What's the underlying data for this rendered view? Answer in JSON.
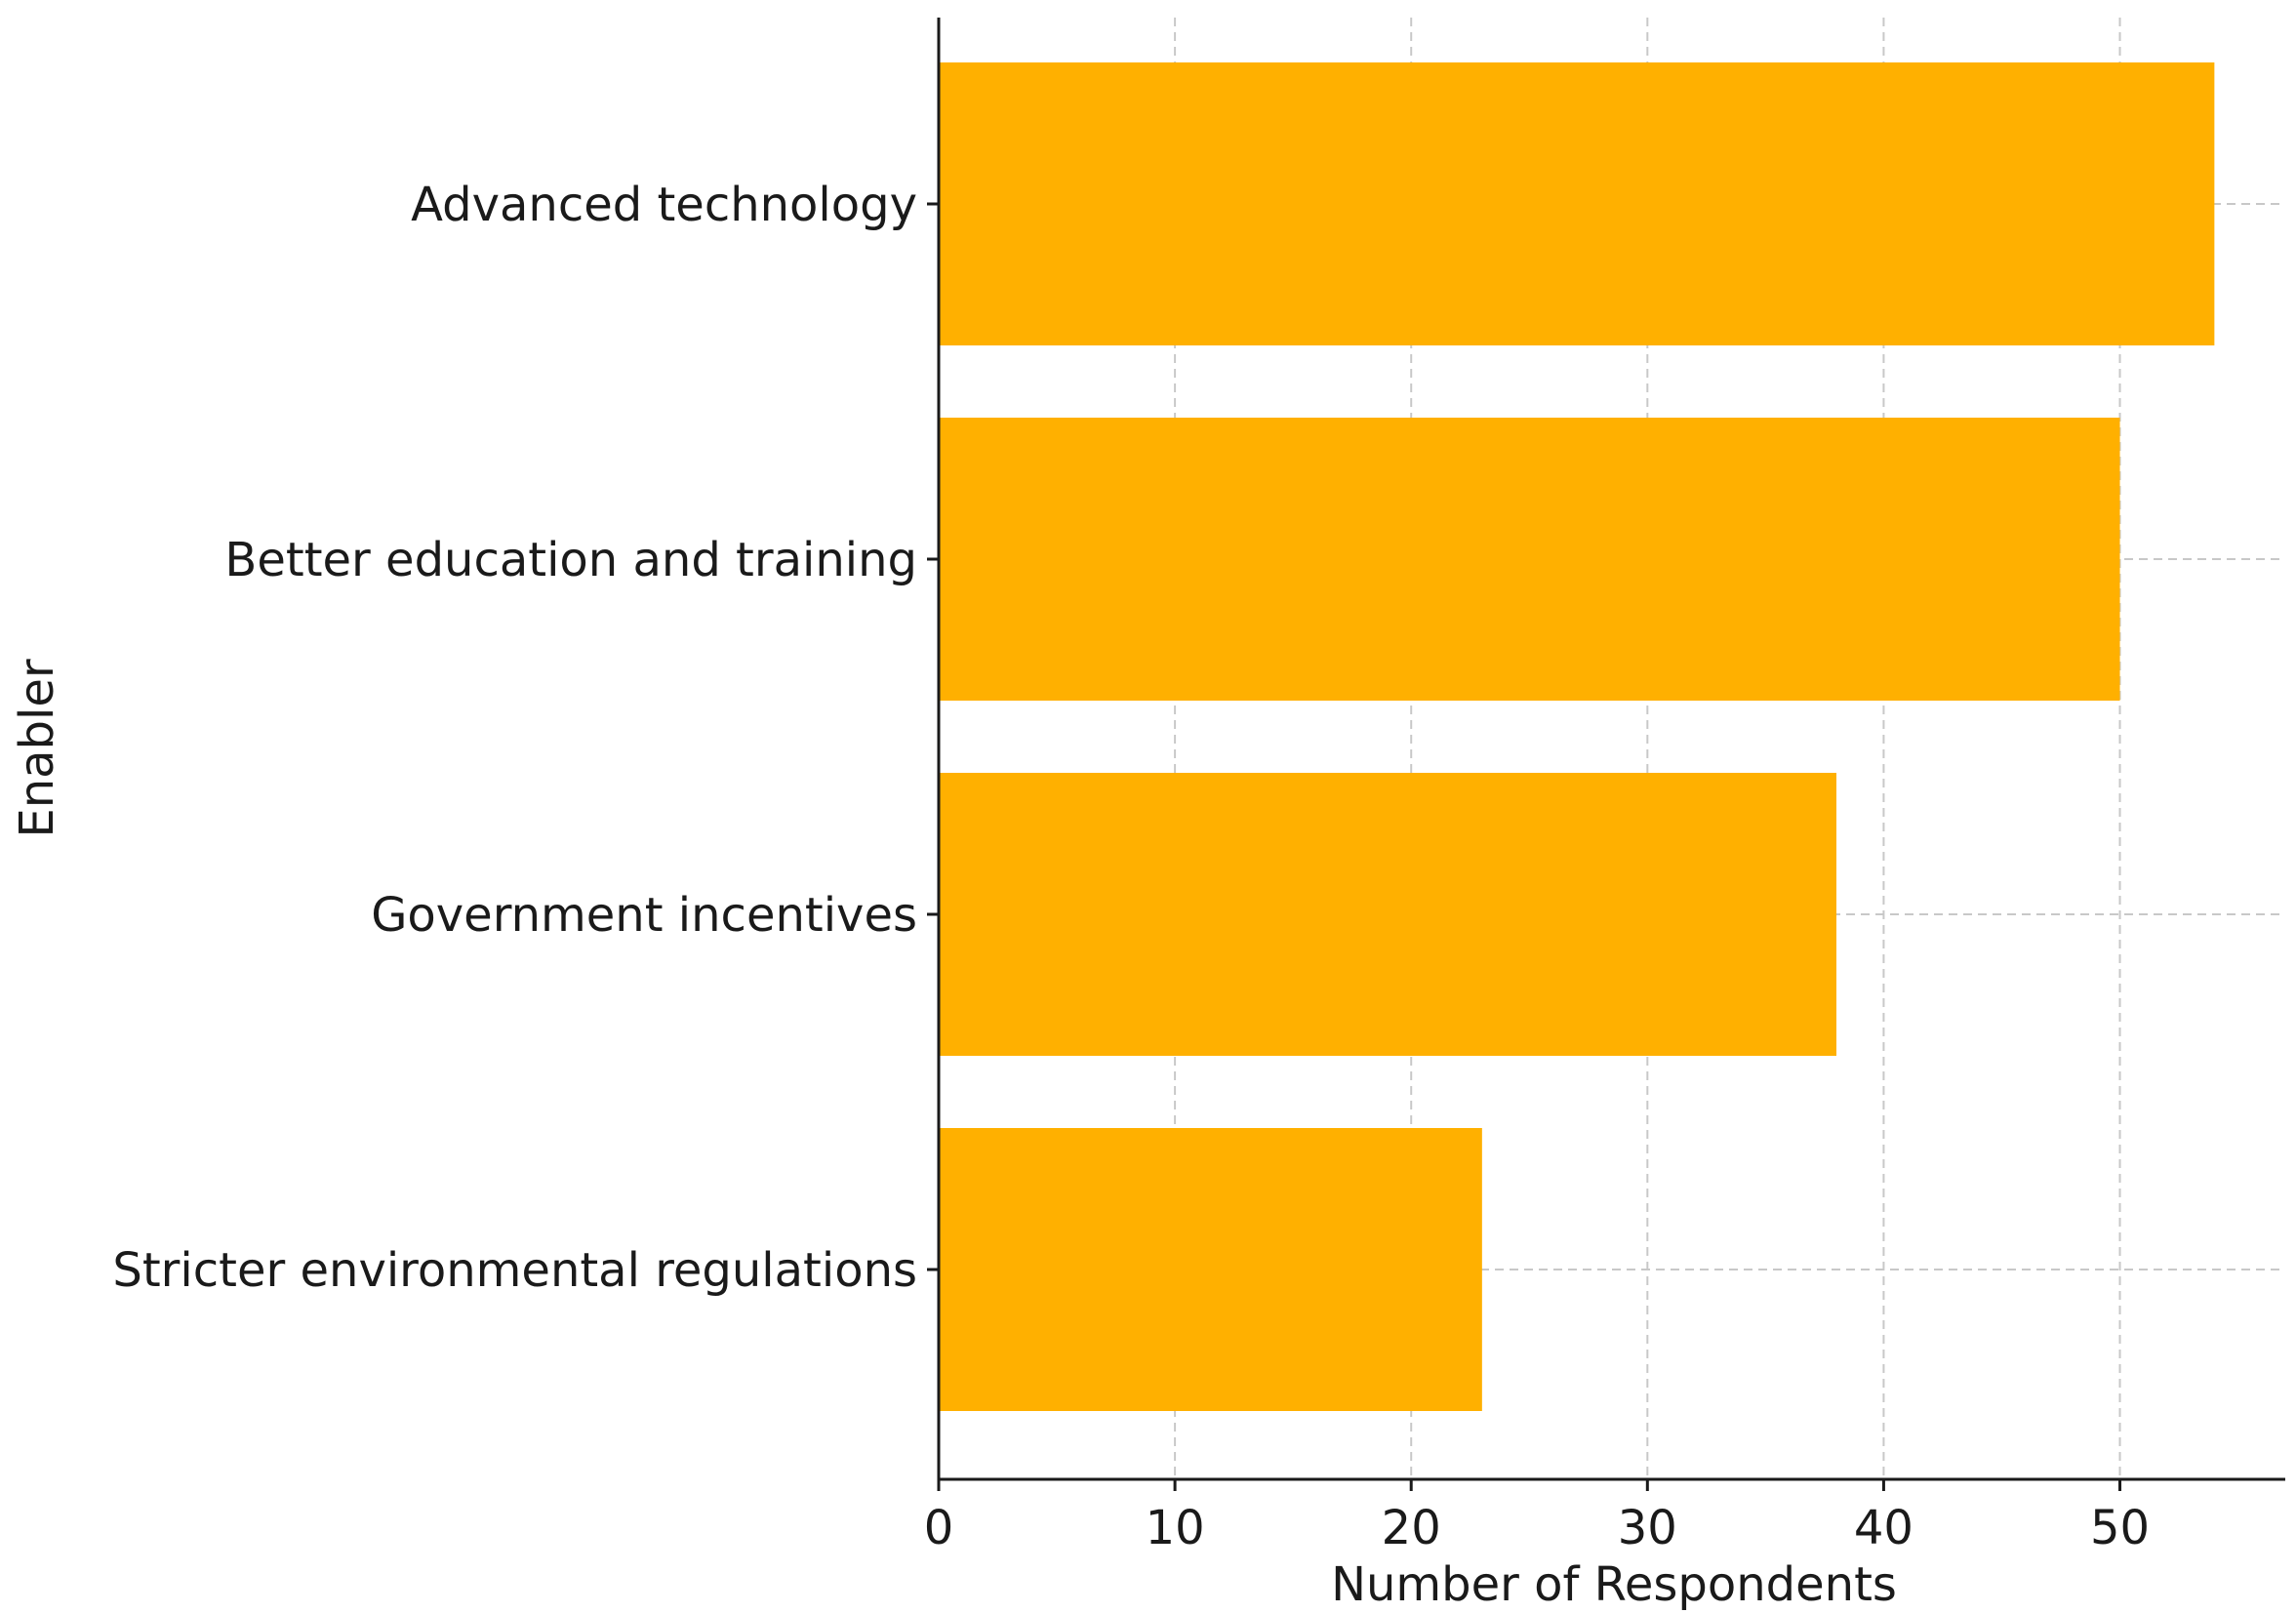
{
  "chart_data": {
    "type": "bar",
    "orientation": "horizontal",
    "categories": [
      "Advanced technology",
      "Better education and training",
      "Government incentives",
      "Stricter environmental regulations"
    ],
    "values": [
      54,
      50,
      38,
      23
    ],
    "xlabel": "Number of Respondents",
    "ylabel": "Enabler",
    "xlim": [
      0,
      57
    ],
    "x_ticks": [
      0,
      10,
      20,
      30,
      40,
      50
    ],
    "grid": true,
    "bar_color": "#FFB000"
  }
}
